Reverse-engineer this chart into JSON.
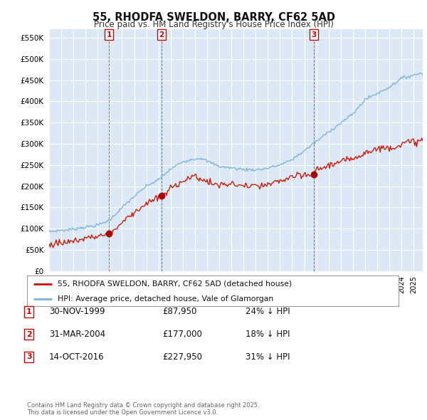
{
  "title": "55, RHODFA SWELDON, BARRY, CF62 5AD",
  "subtitle": "Price paid vs. HM Land Registry's House Price Index (HPI)",
  "ylim": [
    0,
    570000
  ],
  "yticks": [
    0,
    50000,
    100000,
    150000,
    200000,
    250000,
    300000,
    350000,
    400000,
    450000,
    500000,
    550000
  ],
  "xlim_start": 1995.0,
  "xlim_end": 2025.75,
  "legend_entries": [
    "55, RHODFA SWELDON, BARRY, CF62 5AD (detached house)",
    "HPI: Average price, detached house, Vale of Glamorgan"
  ],
  "sale_markers": [
    {
      "num": 1,
      "year": 1999.92,
      "price": 87950
    },
    {
      "num": 2,
      "year": 2004.25,
      "price": 177000
    },
    {
      "num": 3,
      "year": 2016.79,
      "price": 227950
    }
  ],
  "table_rows": [
    {
      "num": 1,
      "date": "30-NOV-1999",
      "price": "£87,950",
      "hpi": "24% ↓ HPI"
    },
    {
      "num": 2,
      "date": "31-MAR-2004",
      "price": "£177,000",
      "hpi": "18% ↓ HPI"
    },
    {
      "num": 3,
      "date": "14-OCT-2016",
      "price": "£227,950",
      "hpi": "31% ↓ HPI"
    }
  ],
  "footer": "Contains HM Land Registry data © Crown copyright and database right 2025.\nThis data is licensed under the Open Government Licence v3.0.",
  "bg_color": "#ffffff",
  "plot_bg_color": "#dce8f5",
  "grid_color": "#ffffff",
  "hpi_line_color": "#7ab0d4",
  "price_line_color": "#cc1100",
  "marker_line_color": "#cc1100",
  "marker_dot_color": "#aa0000"
}
